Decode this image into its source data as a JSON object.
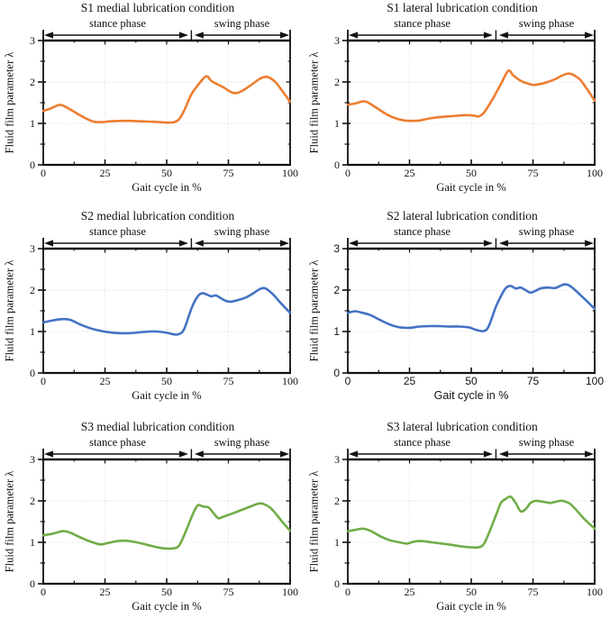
{
  "figure_background": "#ffffff",
  "chart_data": {
    "type": "line",
    "axes": {
      "xlabel": "Gait cycle in %",
      "ylabel": "Fluid film parameter λ",
      "xlim": [
        0,
        100
      ],
      "ylim": [
        0,
        3
      ],
      "x_ticks": [
        {
          "value": 0,
          "label": "0"
        },
        {
          "value": 25,
          "label": "25"
        },
        {
          "value": 50,
          "label": "50"
        },
        {
          "value": 75,
          "label": "75"
        },
        {
          "value": 100,
          "label": "100"
        }
      ],
      "y_ticks": [
        {
          "value": 0,
          "label": "0"
        },
        {
          "value": 1,
          "label": "1"
        },
        {
          "value": 2,
          "label": "2"
        },
        {
          "value": 3,
          "label": "3"
        }
      ],
      "x_minor_ticks": [
        12.5,
        37.5,
        62.5,
        87.5
      ],
      "y_minor_ticks": [
        0.5,
        1.5,
        2.5
      ],
      "x_grid": [
        25,
        50,
        75
      ],
      "y_grid": [
        1,
        2
      ],
      "grid_style": "dotted",
      "grid_color": "#d8d8d8",
      "axis_color": "#111111"
    },
    "phases": {
      "stance_label": "stance phase",
      "swing_label": "swing phase",
      "split_percent": 60
    },
    "charts": [
      {
        "id": "s1-medial",
        "title": "S1 medial lubrication condition",
        "color": "#ED7D31",
        "tick_font": "serif",
        "x": [
          0,
          3,
          6,
          8,
          12,
          16,
          20,
          23,
          27,
          31,
          35,
          40,
          45,
          50,
          53,
          55,
          57,
          60,
          63,
          66,
          68,
          70,
          73,
          76,
          78,
          81,
          84,
          87,
          89,
          91,
          94,
          97,
          100
        ],
        "y": [
          1.3,
          1.36,
          1.44,
          1.43,
          1.3,
          1.16,
          1.05,
          1.03,
          1.05,
          1.06,
          1.06,
          1.05,
          1.04,
          1.02,
          1.03,
          1.1,
          1.3,
          1.7,
          1.95,
          2.14,
          2.03,
          1.96,
          1.87,
          1.76,
          1.73,
          1.8,
          1.92,
          2.05,
          2.11,
          2.12,
          2.0,
          1.77,
          1.52
        ]
      },
      {
        "id": "s1-lateral",
        "title": "S1 lateral lubrication condition",
        "color": "#ED7D31",
        "tick_font": "serif",
        "x": [
          0,
          3,
          6,
          8,
          12,
          16,
          20,
          23,
          26,
          29,
          33,
          37,
          41,
          45,
          48,
          51,
          53,
          55,
          58,
          60,
          62,
          65,
          67,
          70,
          73,
          75,
          78,
          81,
          84,
          87,
          89,
          91,
          94,
          97,
          100
        ],
        "y": [
          1.45,
          1.48,
          1.53,
          1.51,
          1.36,
          1.21,
          1.11,
          1.07,
          1.06,
          1.07,
          1.12,
          1.15,
          1.17,
          1.19,
          1.2,
          1.19,
          1.17,
          1.25,
          1.52,
          1.73,
          1.95,
          2.27,
          2.16,
          2.03,
          1.96,
          1.93,
          1.95,
          2.0,
          2.07,
          2.16,
          2.2,
          2.18,
          2.06,
          1.82,
          1.55
        ]
      },
      {
        "id": "s2-medial",
        "title": "S2 medial lubrication condition",
        "color": "#4472C4",
        "tick_font": "serif",
        "x": [
          0,
          4,
          8,
          11,
          15,
          19,
          23,
          27,
          31,
          35,
          39,
          43,
          46,
          50,
          53,
          55,
          57,
          60,
          62,
          64,
          66,
          68,
          70,
          72,
          74,
          76,
          79,
          82,
          85,
          88,
          90,
          93,
          96,
          100
        ],
        "y": [
          1.22,
          1.27,
          1.3,
          1.28,
          1.17,
          1.08,
          1.02,
          0.98,
          0.96,
          0.96,
          0.98,
          1.0,
          1.0,
          0.97,
          0.93,
          0.94,
          1.05,
          1.55,
          1.8,
          1.92,
          1.9,
          1.85,
          1.87,
          1.8,
          1.74,
          1.72,
          1.76,
          1.82,
          1.92,
          2.03,
          2.04,
          1.9,
          1.7,
          1.45
        ]
      },
      {
        "id": "s2-lateral",
        "title": "S2 lateral lubrication condition",
        "color": "#4472C4",
        "tick_font": "sans",
        "x": [
          0,
          3,
          6,
          9,
          13,
          17,
          21,
          25,
          29,
          33,
          37,
          41,
          45,
          49,
          52,
          55,
          57,
          60,
          62,
          64,
          66,
          68,
          70,
          72,
          74,
          76,
          78,
          81,
          84,
          86,
          88,
          90,
          93,
          96,
          100
        ],
        "y": [
          1.45,
          1.49,
          1.45,
          1.4,
          1.28,
          1.17,
          1.1,
          1.09,
          1.12,
          1.13,
          1.13,
          1.12,
          1.12,
          1.1,
          1.04,
          1.01,
          1.12,
          1.6,
          1.85,
          2.05,
          2.1,
          2.04,
          2.06,
          2.0,
          1.94,
          1.98,
          2.04,
          2.06,
          2.05,
          2.1,
          2.14,
          2.1,
          1.95,
          1.78,
          1.55
        ]
      },
      {
        "id": "s3-medial",
        "title": "S3 medial lubrication condition",
        "color": "#70AD47",
        "tick_font": "serif",
        "x": [
          0,
          4,
          8,
          11,
          15,
          19,
          23,
          26,
          30,
          33,
          36,
          40,
          44,
          48,
          52,
          55,
          58,
          60,
          62,
          63,
          65,
          67,
          69,
          71,
          73,
          76,
          79,
          82,
          85,
          87,
          89,
          92,
          95,
          97,
          100
        ],
        "y": [
          1.17,
          1.21,
          1.27,
          1.23,
          1.12,
          1.02,
          0.95,
          0.98,
          1.03,
          1.04,
          1.02,
          0.97,
          0.91,
          0.86,
          0.85,
          0.92,
          1.3,
          1.6,
          1.85,
          1.9,
          1.86,
          1.84,
          1.7,
          1.58,
          1.62,
          1.68,
          1.75,
          1.82,
          1.89,
          1.93,
          1.93,
          1.83,
          1.63,
          1.48,
          1.28
        ]
      },
      {
        "id": "s3-lateral",
        "title": "S3 lateral lubrication condition",
        "color": "#70AD47",
        "tick_font": "serif",
        "x": [
          0,
          3,
          6,
          9,
          13,
          17,
          21,
          24,
          27,
          30,
          34,
          38,
          42,
          46,
          50,
          53,
          55,
          57,
          60,
          62,
          64,
          66,
          68,
          70,
          72,
          74,
          76,
          79,
          82,
          85,
          87,
          90,
          93,
          96,
          100
        ],
        "y": [
          1.27,
          1.3,
          1.33,
          1.28,
          1.15,
          1.05,
          1.0,
          0.97,
          1.02,
          1.03,
          1.0,
          0.97,
          0.94,
          0.9,
          0.88,
          0.88,
          0.95,
          1.2,
          1.65,
          1.95,
          2.05,
          2.1,
          1.95,
          1.75,
          1.8,
          1.95,
          2.0,
          1.98,
          1.95,
          1.99,
          2.0,
          1.93,
          1.75,
          1.55,
          1.33
        ]
      }
    ]
  }
}
